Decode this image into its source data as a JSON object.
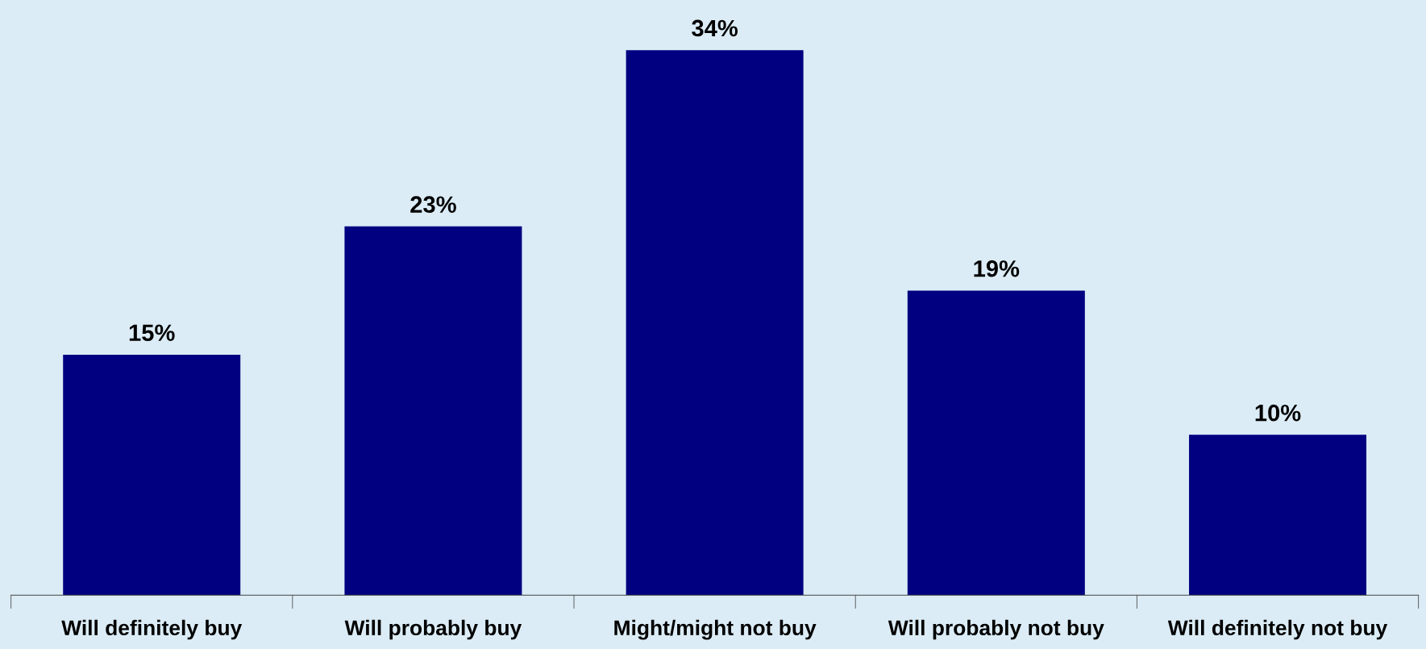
{
  "chart_data": {
    "type": "bar",
    "categories": [
      "Will definitely buy",
      "Will probably buy",
      "Might/might not buy",
      "Will probably not buy",
      "Will definitely not buy"
    ],
    "values": [
      15,
      23,
      34,
      19,
      10
    ],
    "color": "#000080",
    "data_labels": true,
    "value_labels": [
      "15%",
      "23%",
      "34%",
      "19%",
      "10%"
    ],
    "grid": false,
    "legend": false
  }
}
